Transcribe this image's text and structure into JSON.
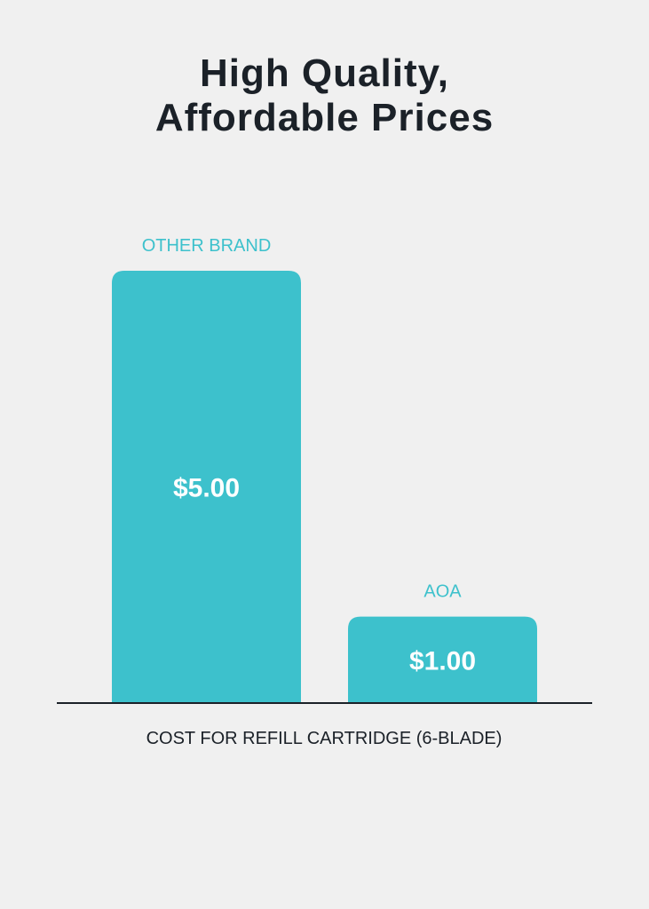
{
  "chart_data": {
    "type": "bar",
    "title": [
      "High Quality,",
      "Affordable Prices"
    ],
    "categories": [
      "OTHER BRAND",
      "AOA"
    ],
    "values": [
      5.0,
      1.0
    ],
    "data_labels": [
      "$5.00",
      "$1.00"
    ],
    "xlabel": "COST FOR REFILL CARTRIDGE (6-BLADE)",
    "ylabel": "",
    "ylim": [
      0,
      5
    ],
    "grid": false,
    "legend": "none",
    "colors": {
      "bar": "#3dc1cc",
      "category_label": "#3dc1cc",
      "data_label": "#ffffff",
      "title": "#1b2128",
      "axis": "#1b2128",
      "background": "#f0f0f0"
    }
  }
}
